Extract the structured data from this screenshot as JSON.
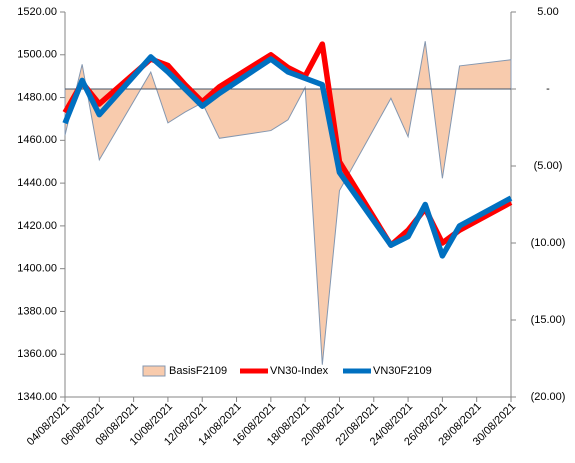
{
  "chart_data": {
    "type": "line",
    "x": [
      "04/08/2021",
      "05/08/2021",
      "06/08/2021",
      "09/08/2021",
      "10/08/2021",
      "11/08/2021",
      "12/08/2021",
      "13/08/2021",
      "16/08/2021",
      "17/08/2021",
      "18/08/2021",
      "19/08/2021",
      "20/08/2021",
      "23/08/2021",
      "24/08/2021",
      "25/08/2021",
      "26/08/2021",
      "27/08/2021",
      "30/08/2021"
    ],
    "series": [
      {
        "name": "BasisF2109",
        "type": "area",
        "axis": "y2",
        "color": "#f8cbad",
        "values": [
          -3,
          1.6,
          -4.6,
          1.1,
          -2.2,
          -1.5,
          -0.9,
          -3.2,
          -2.7,
          -2,
          0.1,
          -17.9,
          -6.6,
          -0.6,
          -3.1,
          3.1,
          -5.8,
          1.5,
          1.9
        ]
      },
      {
        "name": "VN30-Index",
        "type": "line",
        "color": "#ff0000",
        "values": [
          1473,
          1487,
          1477,
          1498,
          1495,
          1486,
          1478,
          1485,
          1500,
          1494,
          1490,
          1505,
          1450,
          1411,
          1418,
          1428,
          1412,
          1418,
          1431
        ]
      },
      {
        "name": "VN30F2109",
        "type": "line",
        "color": "#0070c0",
        "values": [
          1468,
          1488,
          1472,
          1499,
          1492,
          1484,
          1476,
          1482,
          1498,
          1492,
          1489,
          1486,
          1445,
          1411,
          1415,
          1430,
          1406,
          1420,
          1433
        ]
      }
    ],
    "xlim": [
      "04/08/2021",
      "30/08/2021"
    ],
    "xticks": [
      "04/08/2021",
      "06/08/2021",
      "08/08/2021",
      "10/08/2021",
      "12/08/2021",
      "14/08/2021",
      "16/08/2021",
      "18/08/2021",
      "20/08/2021",
      "22/08/2021",
      "24/08/2021",
      "26/08/2021",
      "28/08/2021",
      "30/08/2021"
    ],
    "ylim": [
      1340,
      1520
    ],
    "yticks": [
      {
        "value": 1340,
        "label": "1340.00"
      },
      {
        "value": 1360,
        "label": "1360.00"
      },
      {
        "value": 1380,
        "label": "1380.00"
      },
      {
        "value": 1400,
        "label": "1400.00"
      },
      {
        "value": 1420,
        "label": "1420.00"
      },
      {
        "value": 1440,
        "label": "1440.00"
      },
      {
        "value": 1460,
        "label": "1460.00"
      },
      {
        "value": 1480,
        "label": "1480.00"
      },
      {
        "value": 1500,
        "label": "1500.00"
      },
      {
        "value": 1520,
        "label": "1520.00"
      }
    ],
    "y2lim": [
      -20,
      5
    ],
    "y2ticks": [
      {
        "value": 5,
        "label": "5.00"
      },
      {
        "value": 0,
        "label": "-"
      },
      {
        "value": -5,
        "label": "(5.00)"
      },
      {
        "value": -10,
        "label": "(10.00)"
      },
      {
        "value": -15,
        "label": "(15.00)"
      },
      {
        "value": -20,
        "label": "(20.00)"
      }
    ],
    "legend": "bottom"
  }
}
